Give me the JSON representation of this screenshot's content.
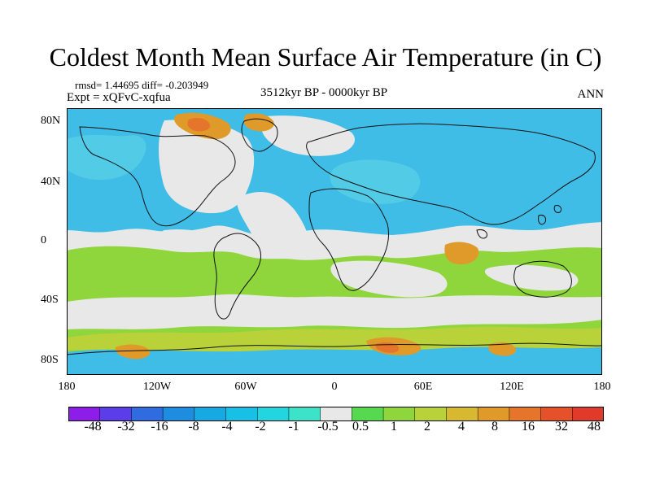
{
  "header": {
    "title": "Coldest Month Mean Surface Air Temperature (in C)",
    "stats": "rmsd= 1.44695 diff= -0.203949",
    "experiment": "Expt = xQFvC-xqfua",
    "period": "3512kyr BP - 0000kyr BP",
    "season": "ANN"
  },
  "map": {
    "lat_labels": [
      "80N",
      "40N",
      "0",
      "40S",
      "80S"
    ],
    "lon_labels": [
      "180",
      "120W",
      "60W",
      "0",
      "60E",
      "120E",
      "180"
    ],
    "lat_ticks": [
      80,
      40,
      0,
      -40,
      -80
    ],
    "lon_ticks": [
      -180,
      -120,
      -60,
      0,
      60,
      120,
      180
    ]
  },
  "colorbar": {
    "labels": [
      "-48",
      "-32",
      "-16",
      "-8",
      "-4",
      "-2",
      "-1",
      "-0.5",
      "0.5",
      "1",
      "2",
      "4",
      "8",
      "16",
      "32",
      "48"
    ],
    "colors": [
      "#8d1de8",
      "#5b3ee9",
      "#2f6ce0",
      "#1e8ddf",
      "#16a9e2",
      "#18c0e6",
      "#22d5e0",
      "#3de3c8",
      "#e8e8e8",
      "#57d94f",
      "#8fd63d",
      "#b9d23a",
      "#d7b931",
      "#e09a29",
      "#e5752a",
      "#e55229",
      "#e03a2b"
    ]
  },
  "legend_colors": {
    "neutral": "#e8e8e8",
    "ocean_blue": "#3fbde6",
    "light_blue": "#52cbe6",
    "warm_green": "#8fd63d",
    "yellow_green": "#b9d23a",
    "orange": "#e09a29",
    "red_orange": "#e5752a"
  }
}
